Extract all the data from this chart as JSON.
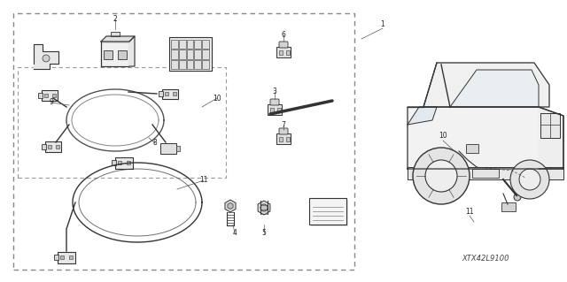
{
  "bg_color": "#ffffff",
  "fig_width": 6.4,
  "fig_height": 3.19,
  "dpi": 100,
  "part_code": "XTX42L9100",
  "line_color": "#555555",
  "dark_color": "#333333",
  "label_fontsize": 5.5,
  "code_fontsize": 6.0
}
